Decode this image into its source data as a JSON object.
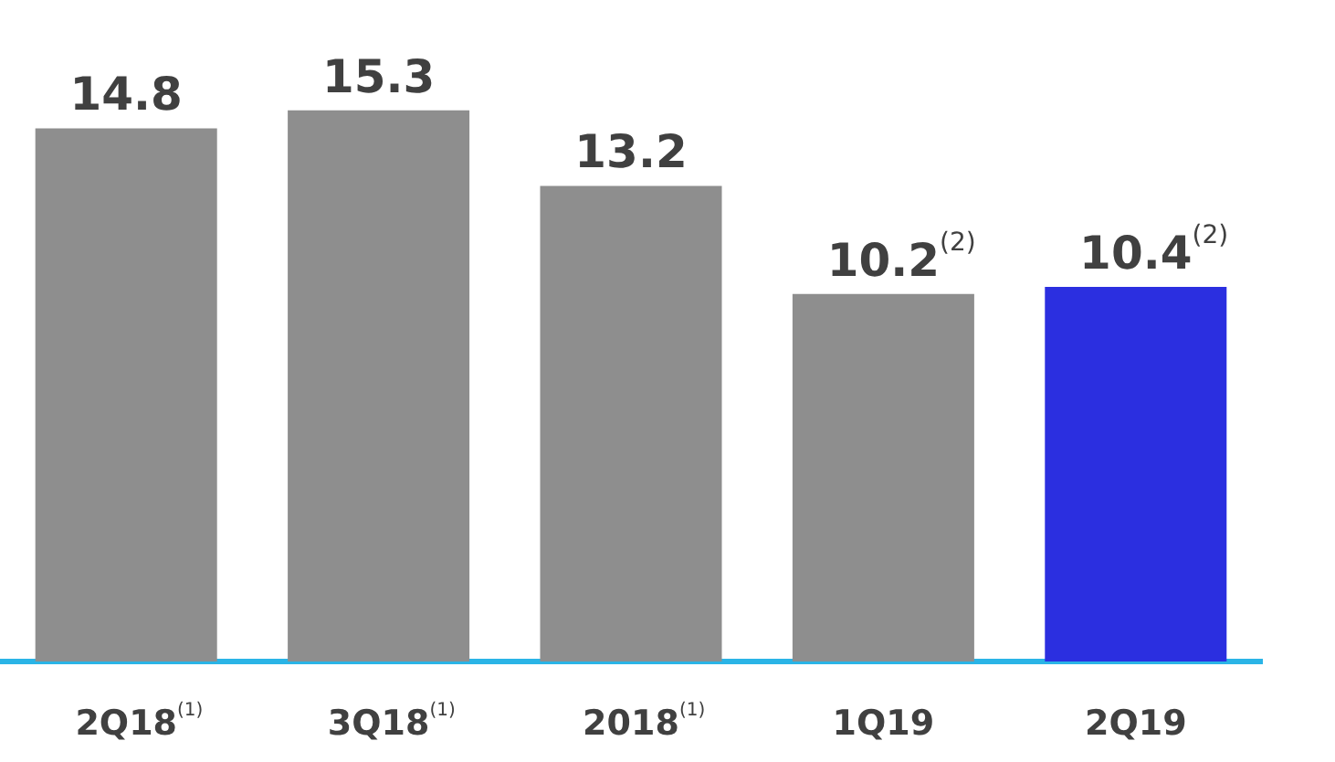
{
  "chart_data": {
    "type": "bar",
    "categories": [
      "2Q18$^{(1)}$",
      "3Q18$^{(1)}$",
      "2018$^{(1)}$",
      "1Q19",
      "2Q19"
    ],
    "values": [
      14.8,
      15.3,
      13.2,
      10.2,
      10.4
    ],
    "colors": [
      "#8e8e8e",
      "#8e8e8e",
      "#8e8e8e",
      "#8e8e8e",
      "#2b2fe0"
    ],
    "value_labels": [
      "14.8",
      "15.3",
      "13.2",
      "10.2$^{(2)}$",
      "10.4$^{(2)}$"
    ],
    "grid": false,
    "legend": false
  }
}
